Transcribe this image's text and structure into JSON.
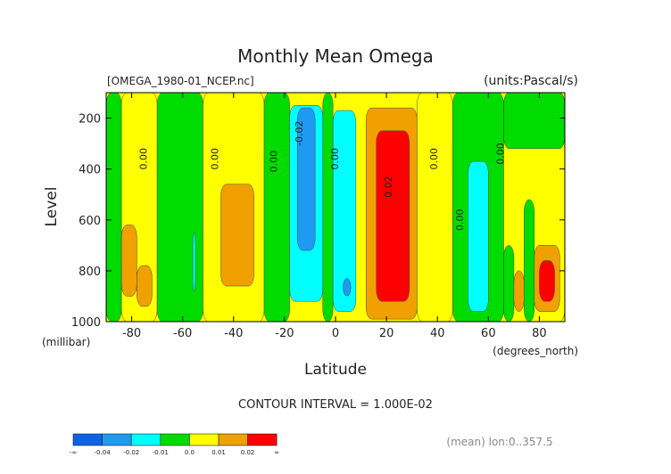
{
  "chart_data": {
    "type": "heatmap",
    "title": "Monthly Mean Omega",
    "file_label": "[OMEGA_1980-01_NCEP.nc]",
    "units_label": "(units:Pascal/s)",
    "xlabel": "Latitude",
    "x_units": "(degrees_north)",
    "ylabel": "Level",
    "y_units": "(millibar)",
    "xlim": [
      -90,
      90
    ],
    "ylim": [
      1000,
      100
    ],
    "x_ticks": [
      -80,
      -60,
      -40,
      -20,
      0,
      20,
      40,
      60,
      80
    ],
    "y_ticks": [
      200,
      400,
      600,
      800,
      1000
    ],
    "contour_interval_text": "CONTOUR INTERVAL = 1.000E-02",
    "footer_text": "(mean) lon:0..357.5",
    "colorbar": {
      "labels": [
        "-∞",
        "-0.04",
        "-0.02",
        "-0.01",
        "0.0",
        "0.01",
        "0.02",
        "∞"
      ],
      "colors": [
        "#0a64e6",
        "#1e9bf0",
        "#00ffff",
        "#00dc00",
        "#ffff00",
        "#f0a000",
        "#ff0000"
      ]
    },
    "contour_labels": [
      {
        "text": "0.00",
        "lat": -74,
        "p": 360
      },
      {
        "text": "0.00",
        "lat": -46,
        "p": 360
      },
      {
        "text": "0.00",
        "lat": -23,
        "p": 370
      },
      {
        "text": "-0.02",
        "lat": -13,
        "p": 260
      },
      {
        "text": "0.00",
        "lat": 1,
        "p": 360
      },
      {
        "text": "0.02",
        "lat": 22,
        "p": 470
      },
      {
        "text": "0.00",
        "lat": 40,
        "p": 360
      },
      {
        "text": "0.00",
        "lat": 50,
        "p": 600
      },
      {
        "text": "0.00",
        "lat": 66,
        "p": 340
      }
    ],
    "regions": [
      {
        "name": "green-sh-high-lat",
        "lat": [
          -90,
          -84
        ],
        "p": [
          100,
          1000
        ],
        "value": -0.005,
        "color": "#00dc00"
      },
      {
        "name": "yellow-sh-subpolar",
        "lat": [
          -84,
          -70
        ],
        "p": [
          100,
          1000
        ],
        "value": 0.005,
        "color": "#ffff00"
      },
      {
        "name": "orange-sh-80-a",
        "lat": [
          -84,
          -78
        ],
        "p": [
          620,
          900
        ],
        "value": 0.015,
        "color": "#f0a000"
      },
      {
        "name": "orange-sh-80-b",
        "lat": [
          -78,
          -72
        ],
        "p": [
          780,
          940
        ],
        "value": 0.015,
        "color": "#f0a000"
      },
      {
        "name": "green-sh-60",
        "lat": [
          -70,
          -52
        ],
        "p": [
          100,
          1000
        ],
        "value": -0.005,
        "color": "#00dc00"
      },
      {
        "name": "cyan-sh-60",
        "lat": [
          -56,
          -55
        ],
        "p": [
          650,
          880
        ],
        "value": -0.015,
        "color": "#00ffff"
      },
      {
        "name": "yellow-sh-midlat",
        "lat": [
          -52,
          -28
        ],
        "p": [
          100,
          1000
        ],
        "value": 0.005,
        "color": "#ffff00"
      },
      {
        "name": "orange-sh-40",
        "lat": [
          -45,
          -32
        ],
        "p": [
          460,
          860
        ],
        "value": 0.015,
        "color": "#f0a000"
      },
      {
        "name": "green-sh-20",
        "lat": [
          -28,
          -18
        ],
        "p": [
          100,
          1000
        ],
        "value": -0.005,
        "color": "#00dc00"
      },
      {
        "name": "cyan-sh-10",
        "lat": [
          -18,
          -5
        ],
        "p": [
          150,
          920
        ],
        "value": -0.015,
        "color": "#00ffff"
      },
      {
        "name": "blue-sh-10",
        "lat": [
          -15,
          -8
        ],
        "p": [
          160,
          720
        ],
        "value": -0.025,
        "color": "#1e9bf0"
      },
      {
        "name": "green-eq",
        "lat": [
          -5,
          -1
        ],
        "p": [
          100,
          1000
        ],
        "value": -0.005,
        "color": "#00dc00"
      },
      {
        "name": "cyan-eq",
        "lat": [
          -1,
          8
        ],
        "p": [
          170,
          960
        ],
        "value": -0.015,
        "color": "#00ffff"
      },
      {
        "name": "blue-eq",
        "lat": [
          3,
          6
        ],
        "p": [
          830,
          900
        ],
        "value": -0.025,
        "color": "#1e9bf0"
      },
      {
        "name": "orange-nh-20",
        "lat": [
          12,
          32
        ],
        "p": [
          160,
          990
        ],
        "value": 0.015,
        "color": "#f0a000"
      },
      {
        "name": "red-nh-20",
        "lat": [
          16,
          29
        ],
        "p": [
          250,
          920
        ],
        "value": 0.025,
        "color": "#ff0000"
      },
      {
        "name": "yellow-nh-35",
        "lat": [
          32,
          46
        ],
        "p": [
          100,
          1000
        ],
        "value": 0.005,
        "color": "#ffff00"
      },
      {
        "name": "green-nh-50",
        "lat": [
          46,
          66
        ],
        "p": [
          100,
          1000
        ],
        "value": -0.005,
        "color": "#00dc00"
      },
      {
        "name": "cyan-nh-55",
        "lat": [
          52,
          60
        ],
        "p": [
          370,
          960
        ],
        "value": -0.015,
        "color": "#00ffff"
      },
      {
        "name": "yellow-nh-70",
        "lat": [
          66,
          90
        ],
        "p": [
          100,
          1000
        ],
        "value": 0.005,
        "color": "#ffff00"
      },
      {
        "name": "green-nh-65",
        "lat": [
          66,
          70
        ],
        "p": [
          700,
          1000
        ],
        "value": -0.005,
        "color": "#00dc00"
      },
      {
        "name": "orange-nh-72",
        "lat": [
          70,
          74
        ],
        "p": [
          800,
          960
        ],
        "value": 0.015,
        "color": "#f0a000"
      },
      {
        "name": "green-nh-75",
        "lat": [
          74,
          78
        ],
        "p": [
          520,
          1000
        ],
        "value": -0.005,
        "color": "#00dc00"
      },
      {
        "name": "orange-nh-82",
        "lat": [
          78,
          88
        ],
        "p": [
          700,
          960
        ],
        "value": 0.015,
        "color": "#f0a000"
      },
      {
        "name": "red-nh-82",
        "lat": [
          80,
          86
        ],
        "p": [
          760,
          920
        ],
        "value": 0.025,
        "color": "#ff0000"
      },
      {
        "name": "green-nh-upper",
        "lat": [
          66,
          90
        ],
        "p": [
          100,
          320
        ],
        "value": -0.005,
        "color": "#00dc00"
      }
    ]
  }
}
